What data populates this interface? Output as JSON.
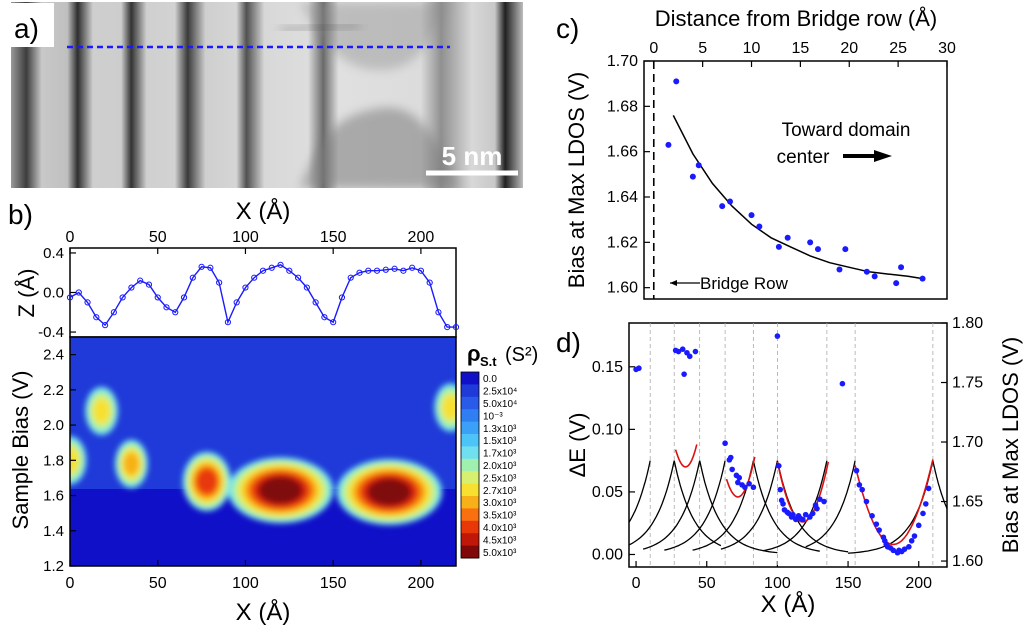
{
  "panels": {
    "a": {
      "label": "a)",
      "scale_bar": "5 nm",
      "scan_line_color": "#1a1aff"
    },
    "b": {
      "label": "b)",
      "top_axis_label": "X (Å)",
      "bottom_axis_label": "X (Å)",
      "z_axis_label": "Z (Å)",
      "bias_axis_label": "Sample Bias (V)",
      "x_ticks": [
        0,
        50,
        100,
        150,
        200
      ],
      "z_ticks": [
        0.4,
        0.0,
        -0.4
      ],
      "bias_ticks": [
        2.4,
        2.2,
        2.0,
        1.8,
        1.6,
        1.4,
        1.2
      ],
      "colorbar_title": "ρ",
      "colorbar_subscript": "S.t",
      "colorbar_units": "(S²)",
      "colorbar_labels": [
        "0.0",
        "2.5x10⁴",
        "5.0x10⁴",
        "10⁻³",
        "1.3x10³",
        "1.5x10³",
        "1.7x10³",
        "2.0x10³",
        "2.5x10³",
        "2.7x10³",
        "3.0x10³",
        "3.5x10³",
        "4.0x10³",
        "4.5x10³",
        "5.0x10³"
      ],
      "colorbar_colors": [
        "#1010c8",
        "#1f3ad8",
        "#2a5ae8",
        "#2f7ef2",
        "#3aa0f8",
        "#4cc4f8",
        "#70e0f0",
        "#a0f0b0",
        "#d8f070",
        "#f8e030",
        "#f8b018",
        "#f87010",
        "#e83808",
        "#c01808",
        "#800808"
      ]
    },
    "c": {
      "label": "c)",
      "top_axis_label": "Distance from Bridge row (Å)",
      "y_axis_label": "Bias at Max LDOS (V)",
      "x_ticks": [
        0,
        5,
        10,
        15,
        20,
        25,
        30
      ],
      "y_ticks": [
        1.7,
        1.68,
        1.66,
        1.64,
        1.62,
        1.6
      ],
      "annotation_1": "Toward domain",
      "annotation_2": "center",
      "bridge_label": "Bridge Row",
      "point_color": "#1a1aff"
    },
    "d": {
      "label": "d)",
      "y_axis_label": "ΔE (V)",
      "right_axis_label": "Bias at Max LDOS (V)",
      "x_axis_label": "X (Å)",
      "x_ticks": [
        0,
        50,
        100,
        150,
        200
      ],
      "y_ticks": [
        0.15,
        0.1,
        0.05,
        0.0
      ],
      "right_ticks": [
        1.8,
        1.75,
        1.7,
        1.65,
        1.6
      ],
      "fit_color": "#e01010",
      "point_color": "#1a1aff"
    }
  },
  "chart_data": [
    {
      "type": "line",
      "panel": "b-top",
      "xlabel": "X (Å)",
      "ylabel": "Z (Å)",
      "xlim": [
        0,
        220
      ],
      "ylim": [
        -0.45,
        0.45
      ],
      "series": [
        {
          "x": [
            0,
            5,
            10,
            15,
            20,
            25,
            30,
            35,
            40,
            45,
            50,
            55,
            60,
            65,
            70,
            75,
            80,
            85,
            90,
            95,
            100,
            105,
            110,
            115,
            120,
            125,
            130,
            135,
            140,
            145,
            150,
            155,
            160,
            165,
            170,
            175,
            180,
            185,
            190,
            195,
            200,
            205,
            210,
            215,
            220
          ],
          "values": [
            -0.05,
            0.0,
            -0.1,
            -0.25,
            -0.33,
            -0.2,
            -0.05,
            0.05,
            0.12,
            0.08,
            -0.05,
            -0.15,
            -0.2,
            -0.05,
            0.15,
            0.26,
            0.25,
            0.1,
            -0.3,
            -0.1,
            0.05,
            0.15,
            0.22,
            0.25,
            0.28,
            0.22,
            0.15,
            0.05,
            -0.1,
            -0.25,
            -0.3,
            -0.05,
            0.15,
            0.2,
            0.22,
            0.22,
            0.23,
            0.24,
            0.22,
            0.25,
            0.22,
            0.1,
            -0.2,
            -0.35,
            -0.35
          ]
        }
      ]
    },
    {
      "type": "heatmap",
      "panel": "b-bottom",
      "xlabel": "X (Å)",
      "ylabel": "Sample Bias (V)",
      "xlim": [
        0,
        220
      ],
      "ylim": [
        1.2,
        2.5
      ],
      "hotspots": [
        {
          "x": 0,
          "y": 1.8,
          "peak": 9
        },
        {
          "x": 18,
          "y": 2.08,
          "peak": 9
        },
        {
          "x": 35,
          "y": 1.78,
          "peak": 10
        },
        {
          "x": 78,
          "y": 1.68,
          "peak": 12
        },
        {
          "x": 120,
          "y": 1.63,
          "peak": 14
        },
        {
          "x": 182,
          "y": 1.62,
          "peak": 14
        },
        {
          "x": 217,
          "y": 2.1,
          "peak": 9
        }
      ]
    },
    {
      "type": "scatter",
      "panel": "c",
      "xlabel": "Distance from Bridge row (Å)",
      "ylabel": "Bias at Max LDOS (V)",
      "xlim": [
        -1,
        30
      ],
      "ylim": [
        1.595,
        1.7
      ],
      "bridge_row_x": 0,
      "series": [
        {
          "x": [
            1.5,
            2.3,
            4.0,
            4.6,
            7.0,
            7.8,
            10.0,
            10.8,
            12.8,
            13.7,
            16.0,
            16.8,
            19.0,
            19.6,
            21.8,
            22.6,
            24.8,
            25.3,
            27.5
          ],
          "values": [
            1.663,
            1.691,
            1.649,
            1.654,
            1.636,
            1.638,
            1.632,
            1.627,
            1.618,
            1.622,
            1.62,
            1.617,
            1.608,
            1.617,
            1.607,
            1.605,
            1.602,
            1.609,
            1.604
          ]
        }
      ],
      "fit_curve": {
        "x": [
          2,
          4,
          6,
          8,
          10,
          12,
          14,
          16,
          18,
          20,
          22,
          24,
          26,
          27.5
        ],
        "values": [
          1.676,
          1.659,
          1.646,
          1.636,
          1.628,
          1.622,
          1.618,
          1.614,
          1.611,
          1.609,
          1.607,
          1.606,
          1.605,
          1.604
        ]
      }
    },
    {
      "type": "scatter",
      "panel": "d",
      "xlabel": "X (Å)",
      "ylabel": "ΔE (V)",
      "y2label": "Bias at Max LDOS (V)",
      "xlim": [
        -5,
        220
      ],
      "ylim": [
        -0.01,
        0.185
      ],
      "y2lim": [
        1.595,
        1.8
      ],
      "dashed_x": [
        10,
        27,
        45,
        63,
        83,
        100,
        135,
        155,
        210
      ],
      "series": [
        {
          "x": [
            0,
            2,
            28,
            30,
            33,
            34,
            36,
            38,
            42,
            63,
            66,
            67,
            68,
            71,
            72,
            73,
            75,
            77,
            80,
            83,
            100,
            101,
            102,
            103,
            104,
            105,
            107,
            108,
            110,
            111,
            113,
            115,
            116,
            118,
            120,
            123,
            125,
            127,
            128,
            130,
            133,
            146,
            156,
            158,
            160,
            163,
            167,
            170,
            172,
            175,
            176,
            177,
            178,
            180,
            182,
            185,
            186,
            188,
            190,
            193,
            195,
            197,
            200,
            203,
            205,
            207
          ],
          "values": [
            1.761,
            1.762,
            1.777,
            1.776,
            1.778,
            1.757,
            1.775,
            1.772,
            1.776,
            1.699,
            1.685,
            1.687,
            1.677,
            1.672,
            1.666,
            1.67,
            1.664,
            1.662,
            1.665,
            1.662,
            1.789,
            1.68,
            1.66,
            1.651,
            1.648,
            1.643,
            1.641,
            1.64,
            1.637,
            1.639,
            1.635,
            1.638,
            1.636,
            1.635,
            1.639,
            1.637,
            1.64,
            1.647,
            1.644,
            1.652,
            1.65,
            1.749,
            1.676,
            1.664,
            1.66,
            1.65,
            1.638,
            1.631,
            1.626,
            1.62,
            1.617,
            1.614,
            1.612,
            1.611,
            1.609,
            1.607,
            1.609,
            1.608,
            1.61,
            1.612,
            1.617,
            1.621,
            1.63,
            1.64,
            1.648,
            1.661
          ]
        }
      ]
    }
  ]
}
